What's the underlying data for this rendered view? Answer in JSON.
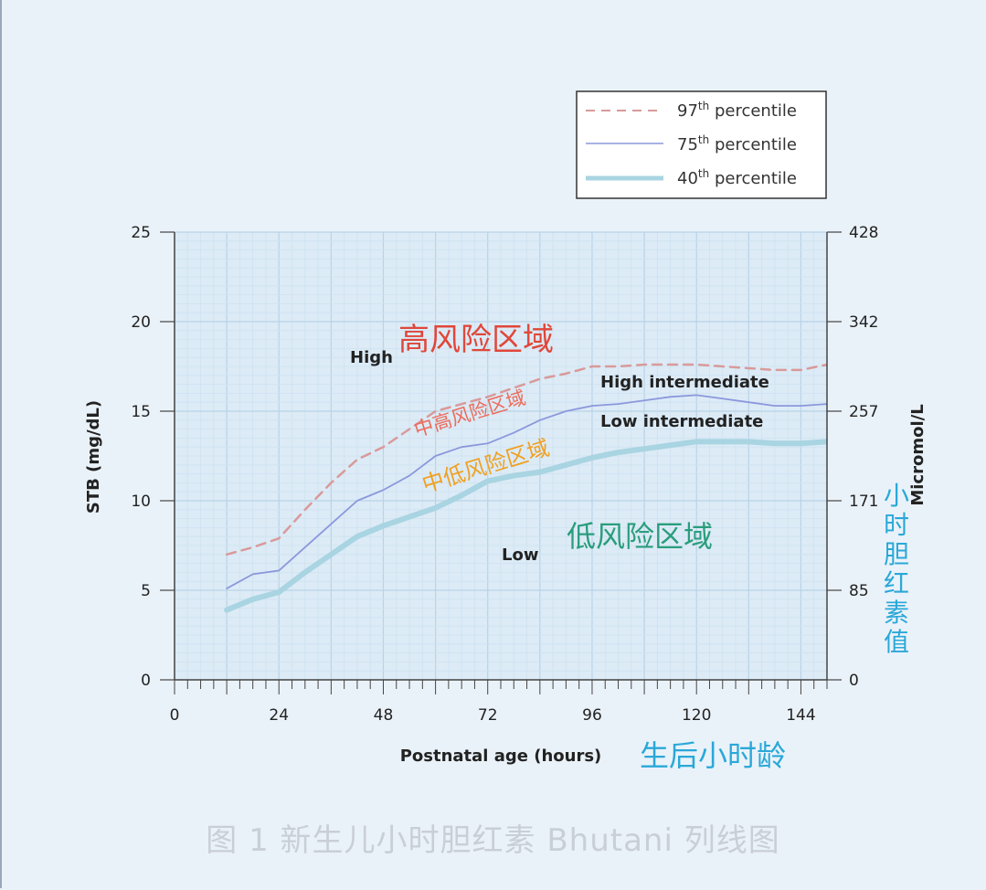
{
  "caption": "图 1 新生儿小时胆红素 Bhutani 列线图",
  "colors": {
    "p97": "#d99a9a",
    "p75": "#8c98dc",
    "p40": "#a9d4e2",
    "cn_high": "#e0473a",
    "cn_high_mid": "#ee6a5a",
    "cn_low_mid": "#f0a020",
    "cn_low": "#2a9d7c",
    "cn_blue": "#2aa8d8"
  },
  "chart_data": {
    "type": "line",
    "title": "",
    "xlabel": "Postnatal age (hours)",
    "xlabel_cn": "生后小时龄",
    "ylabel": "STB (mg/dL)",
    "ylabel_right": "Micromol/L",
    "ylabel_right_cn": [
      "小",
      "时",
      "胆",
      "红",
      "素",
      "值"
    ],
    "xlim": [
      0,
      150
    ],
    "ylim": [
      0,
      25
    ],
    "x_ticks": [
      "0",
      "24",
      "48",
      "72",
      "96",
      "120",
      "144"
    ],
    "x_tick_values": [
      0,
      24,
      48,
      72,
      96,
      120,
      144
    ],
    "y_ticks": [
      "0",
      "5",
      "10",
      "15",
      "20",
      "25"
    ],
    "y_tick_values": [
      0,
      5,
      10,
      15,
      20,
      25
    ],
    "y_right_ticks": [
      "0",
      "85",
      "171",
      "257",
      "342",
      "428"
    ],
    "grid": true,
    "legend_position": "top-right",
    "legend": [
      {
        "sup_num": "97",
        "sup": "th",
        "text": " percentile"
      },
      {
        "sup_num": "75",
        "sup": "th",
        "text": " percentile"
      },
      {
        "sup_num": "40",
        "sup": "th",
        "text": " percentile"
      }
    ],
    "series": [
      {
        "name": "97th percentile",
        "style": "dashed",
        "x": [
          12,
          18,
          24,
          30,
          36,
          42,
          48,
          54,
          60,
          66,
          72,
          78,
          84,
          90,
          96,
          102,
          108,
          114,
          120,
          126,
          132,
          138,
          144,
          150
        ],
        "y": [
          7.0,
          7.4,
          7.9,
          9.5,
          11.0,
          12.3,
          13.0,
          14.0,
          15.0,
          15.4,
          15.8,
          16.3,
          16.8,
          17.1,
          17.5,
          17.5,
          17.6,
          17.6,
          17.6,
          17.5,
          17.4,
          17.3,
          17.3,
          17.6
        ]
      },
      {
        "name": "75th percentile",
        "style": "solid",
        "x": [
          12,
          18,
          24,
          30,
          36,
          42,
          48,
          54,
          60,
          66,
          72,
          78,
          84,
          90,
          96,
          102,
          108,
          114,
          120,
          126,
          132,
          138,
          144,
          150
        ],
        "y": [
          5.1,
          5.9,
          6.1,
          7.4,
          8.7,
          10.0,
          10.6,
          11.4,
          12.5,
          13.0,
          13.2,
          13.8,
          14.5,
          15.0,
          15.3,
          15.4,
          15.6,
          15.8,
          15.9,
          15.7,
          15.5,
          15.3,
          15.3,
          15.4
        ]
      },
      {
        "name": "40th percentile",
        "style": "thick",
        "x": [
          12,
          18,
          24,
          30,
          36,
          42,
          48,
          54,
          60,
          66,
          72,
          78,
          84,
          90,
          96,
          102,
          108,
          114,
          120,
          126,
          132,
          138,
          144,
          150
        ],
        "y": [
          3.9,
          4.5,
          4.9,
          6.0,
          7.0,
          8.0,
          8.6,
          9.1,
          9.6,
          10.3,
          11.1,
          11.4,
          11.6,
          12.0,
          12.4,
          12.7,
          12.9,
          13.1,
          13.3,
          13.3,
          13.3,
          13.2,
          13.2,
          13.3
        ]
      }
    ],
    "annotations": {
      "high": "High",
      "high_intermediate": "High intermediate",
      "low_intermediate": "Low intermediate",
      "low": "Low",
      "high_cn": "高风险区域",
      "high_mid_cn": "中高风险区域",
      "low_mid_cn": "中低风险区域",
      "low_cn": "低风险区域"
    }
  }
}
